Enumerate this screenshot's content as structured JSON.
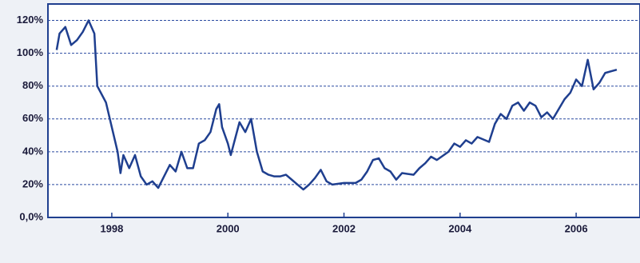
{
  "chart_data": {
    "type": "line",
    "x": [
      1997.05,
      1997.1,
      1997.2,
      1997.3,
      1997.4,
      1997.5,
      1997.6,
      1997.7,
      1997.75,
      1997.9,
      1998.0,
      1998.1,
      1998.15,
      1998.2,
      1998.3,
      1998.4,
      1998.5,
      1998.6,
      1998.7,
      1998.8,
      1998.9,
      1999.0,
      1999.1,
      1999.2,
      1999.3,
      1999.4,
      1999.5,
      1999.6,
      1999.7,
      1999.8,
      1999.85,
      1999.9,
      2000.0,
      2000.05,
      2000.2,
      2000.3,
      2000.4,
      2000.5,
      2000.6,
      2000.7,
      2000.8,
      2000.9,
      2001.0,
      2001.1,
      2001.2,
      2001.3,
      2001.4,
      2001.5,
      2001.6,
      2001.7,
      2001.8,
      2002.0,
      2002.2,
      2002.3,
      2002.4,
      2002.5,
      2002.6,
      2002.7,
      2002.8,
      2002.9,
      2003.0,
      2003.2,
      2003.3,
      2003.4,
      2003.5,
      2003.6,
      2003.8,
      2003.9,
      2004.0,
      2004.1,
      2004.2,
      2004.3,
      2004.5,
      2004.6,
      2004.7,
      2004.8,
      2004.9,
      2005.0,
      2005.1,
      2005.2,
      2005.3,
      2005.4,
      2005.5,
      2005.6,
      2005.8,
      2005.9,
      2006.0,
      2006.1,
      2006.2,
      2006.3,
      2006.4,
      2006.5,
      2006.7
    ],
    "series": [
      {
        "color": "#1f3f8f",
        "values": [
          102,
          112,
          116,
          105,
          108,
          113,
          120,
          112,
          80,
          70,
          55,
          40,
          27,
          38,
          30,
          38,
          25,
          20,
          22,
          18,
          25,
          32,
          28,
          40,
          30,
          30,
          45,
          47,
          52,
          66,
          69,
          55,
          45,
          38,
          58,
          52,
          60,
          40,
          28,
          26,
          25,
          25,
          26,
          23,
          20,
          17,
          20,
          24,
          29,
          22,
          20,
          21,
          21,
          23,
          28,
          35,
          36,
          30,
          28,
          23,
          27,
          26,
          30,
          33,
          37,
          35,
          40,
          45,
          43,
          47,
          45,
          49,
          46,
          57,
          63,
          60,
          68,
          70,
          65,
          70,
          68,
          61,
          64,
          60,
          72,
          76,
          84,
          80,
          96,
          78,
          82,
          88,
          90
        ]
      }
    ],
    "xlim": [
      1996.9,
      2007.1
    ],
    "xticks": [
      1998,
      2000,
      2002,
      2004,
      2006
    ],
    "ylim": [
      0,
      130
    ],
    "yticks": [
      {
        "value": 0,
        "label": "0,0%"
      },
      {
        "value": 20,
        "label": "20%"
      },
      {
        "value": 40,
        "label": "40%"
      },
      {
        "value": 60,
        "label": "60%"
      },
      {
        "value": 80,
        "label": "80%"
      },
      {
        "value": 100,
        "label": "100%"
      },
      {
        "value": 120,
        "label": "120%"
      }
    ],
    "grid": true
  }
}
